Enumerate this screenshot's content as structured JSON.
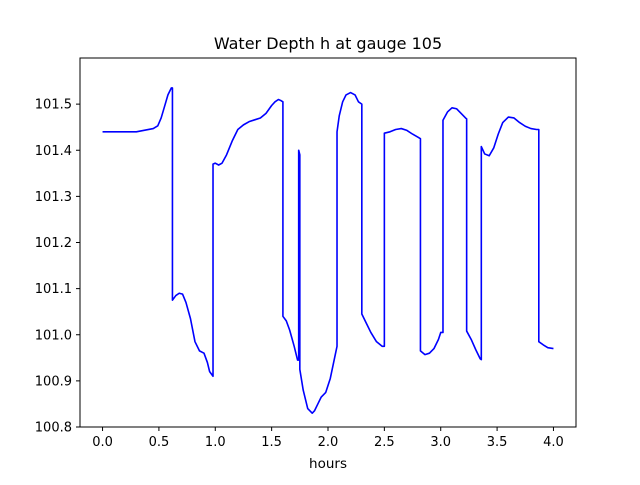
{
  "chart_data": {
    "type": "line",
    "title": "Water Depth h at gauge 105",
    "xlabel": "hours",
    "ylabel": "",
    "xlim": [
      -0.2,
      4.2
    ],
    "ylim": [
      100.8,
      101.6
    ],
    "xticks": [
      0.0,
      0.5,
      1.0,
      1.5,
      2.0,
      2.5,
      3.0,
      3.5,
      4.0
    ],
    "xtick_labels": [
      "0.0",
      "0.5",
      "1.0",
      "1.5",
      "2.0",
      "2.5",
      "3.0",
      "3.5",
      "4.0"
    ],
    "yticks": [
      100.8,
      100.9,
      101.0,
      101.1,
      101.2,
      101.3,
      101.4,
      101.5
    ],
    "ytick_labels": [
      "100.8",
      "100.9",
      "101.0",
      "101.1",
      "101.2",
      "101.3",
      "101.4",
      "101.5"
    ],
    "grid": false,
    "series": [
      {
        "color": "#0000ff",
        "x": [
          0.0,
          0.3,
          0.45,
          0.49,
          0.52,
          0.55,
          0.58,
          0.61,
          0.62,
          0.62,
          0.65,
          0.68,
          0.71,
          0.74,
          0.78,
          0.82,
          0.86,
          0.9,
          0.93,
          0.95,
          0.98,
          0.98,
          1.0,
          1.03,
          1.06,
          1.1,
          1.15,
          1.2,
          1.25,
          1.3,
          1.35,
          1.4,
          1.45,
          1.5,
          1.53,
          1.56,
          1.58,
          1.6,
          1.6,
          1.63,
          1.66,
          1.7,
          1.73,
          1.74,
          1.74,
          1.75,
          1.75,
          1.78,
          1.82,
          1.86,
          1.88,
          1.91,
          1.94,
          1.98,
          2.02,
          2.05,
          2.08,
          2.08,
          2.1,
          2.13,
          2.16,
          2.2,
          2.24,
          2.27,
          2.3,
          2.3,
          2.34,
          2.38,
          2.43,
          2.48,
          2.5,
          2.5,
          2.55,
          2.6,
          2.65,
          2.7,
          2.75,
          2.8,
          2.82,
          2.82,
          2.86,
          2.9,
          2.94,
          2.98,
          3.0,
          3.02,
          3.02,
          3.06,
          3.1,
          3.14,
          3.18,
          3.22,
          3.23,
          3.23,
          3.27,
          3.31,
          3.35,
          3.36,
          3.36,
          3.39,
          3.43,
          3.47,
          3.51,
          3.55,
          3.6,
          3.65,
          3.7,
          3.75,
          3.8,
          3.85,
          3.87,
          3.87,
          3.91,
          3.95,
          4.0
        ],
        "y": [
          101.44,
          101.44,
          101.447,
          101.453,
          101.47,
          101.495,
          101.52,
          101.535,
          101.535,
          101.075,
          101.085,
          101.09,
          101.088,
          101.07,
          101.035,
          100.985,
          100.965,
          100.96,
          100.94,
          100.92,
          100.91,
          101.37,
          101.372,
          101.368,
          101.372,
          101.39,
          101.42,
          101.445,
          101.455,
          101.462,
          101.466,
          101.47,
          101.48,
          101.497,
          101.505,
          101.51,
          101.508,
          101.505,
          101.04,
          101.03,
          101.01,
          100.975,
          100.945,
          100.945,
          101.4,
          101.39,
          100.925,
          100.88,
          100.84,
          100.83,
          100.835,
          100.85,
          100.865,
          100.875,
          100.905,
          100.94,
          100.975,
          101.44,
          101.475,
          101.505,
          101.52,
          101.525,
          101.52,
          101.505,
          101.5,
          101.045,
          101.025,
          101.005,
          100.985,
          100.975,
          100.975,
          101.437,
          101.44,
          101.445,
          101.447,
          101.443,
          101.435,
          101.428,
          101.425,
          100.965,
          100.957,
          100.96,
          100.97,
          100.99,
          101.005,
          101.005,
          101.465,
          101.483,
          101.492,
          101.49,
          101.48,
          101.47,
          101.468,
          101.008,
          100.99,
          100.968,
          100.948,
          100.946,
          101.408,
          101.392,
          101.388,
          101.405,
          101.435,
          101.46,
          101.472,
          101.47,
          101.46,
          101.452,
          101.447,
          101.445,
          101.445,
          100.985,
          100.978,
          100.972,
          100.97
        ]
      }
    ]
  }
}
